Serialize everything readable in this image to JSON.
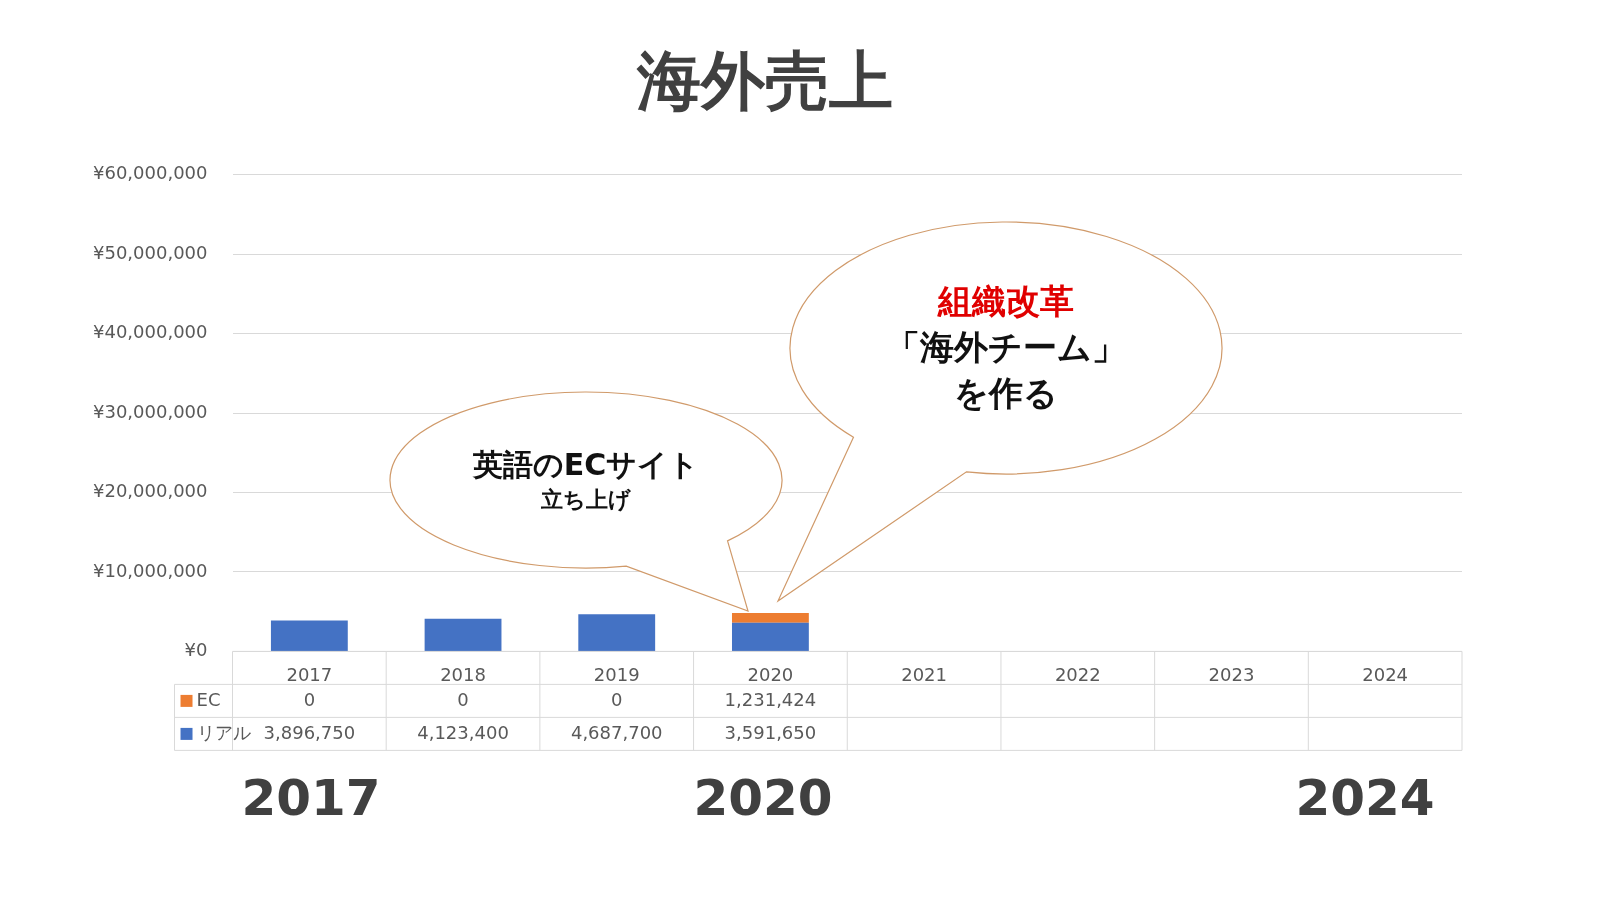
{
  "chart_data": {
    "type": "bar",
    "title": "海外売上",
    "stacked": true,
    "categories": [
      "2017",
      "2018",
      "2019",
      "2020",
      "2021",
      "2022",
      "2023",
      "2024"
    ],
    "series": [
      {
        "name": "リアル",
        "color": "#4472c4",
        "values": [
          3896750,
          4123400,
          4687700,
          3591650,
          null,
          null,
          null,
          null
        ],
        "value_labels": [
          "3,896,750",
          "4,123,400",
          "4,687,700",
          "3,591,650",
          null,
          null,
          null,
          null
        ]
      },
      {
        "name": "EC",
        "color": "#ed7d31",
        "values": [
          0,
          0,
          0,
          1231424,
          null,
          null,
          null,
          null
        ],
        "value_labels": [
          "0",
          "0",
          "0",
          "1,231,424",
          null,
          null,
          null,
          null
        ]
      }
    ],
    "ylim": [
      0,
      60000000
    ],
    "yticks": [
      {
        "value": 0,
        "label": "¥0"
      },
      {
        "value": 10000000,
        "label": "¥10,000,000"
      },
      {
        "value": 20000000,
        "label": "¥20,000,000"
      },
      {
        "value": 30000000,
        "label": "¥30,000,000"
      },
      {
        "value": 40000000,
        "label": "¥40,000,000"
      },
      {
        "value": 50000000,
        "label": "¥50,000,000"
      },
      {
        "value": 60000000,
        "label": "¥60,000,000"
      }
    ],
    "grid": "y",
    "legend": "bottom",
    "annotations": [
      "英語のECサイト",
      "立ち上げ",
      "組織改革",
      "「海外チーム」",
      "を作る",
      "2017",
      "2020",
      "2024"
    ]
  }
}
